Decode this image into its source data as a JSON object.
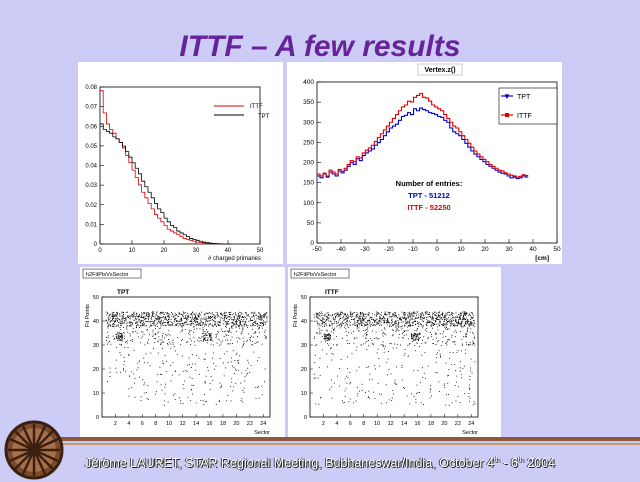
{
  "slide": {
    "title": "ITTF – A few results",
    "footer": {
      "name": "Jérôme LAURET, STAR Regional Meeting, Bubhaneswar/India, October 4",
      "sup1": "th",
      "mid": " - 6",
      "sup2": "th",
      "end": " 2004"
    }
  },
  "colors": {
    "background": "#ccccf7",
    "title": "#66239a",
    "ittf": "#e00000",
    "tpt": "#0000cc"
  },
  "chart_data": [
    {
      "type": "line",
      "xlabel": "# charged primaries",
      "xlim": [
        0,
        50
      ],
      "ylim": [
        0,
        0.085
      ],
      "xticks": [
        "0",
        "10",
        "20",
        "30",
        "40",
        "50"
      ],
      "yticks": [
        "0",
        "0.01",
        "0.02",
        "0.03",
        "0.04",
        "0.05",
        "0.06",
        "0.07",
        "0.08"
      ],
      "legend": [
        "ITTF",
        "TPT"
      ],
      "series": [
        {
          "name": "ITTF",
          "values": [
            0.083,
            0.071,
            0.065,
            0.062,
            0.06,
            0.057,
            0.055,
            0.052,
            0.048,
            0.044,
            0.04,
            0.036,
            0.032,
            0.028,
            0.025,
            0.022,
            0.019,
            0.016,
            0.014,
            0.012,
            0.01,
            0.008,
            0.007,
            0.006,
            0.005,
            0.004,
            0.003,
            0.0025,
            0.002,
            0.0015,
            0.001,
            0.0008,
            0.0006,
            0.0004,
            0.0003,
            0.0002,
            0.0001,
            0,
            0,
            0,
            0
          ]
        },
        {
          "name": "TPT",
          "values": [
            0.065,
            0.062,
            0.061,
            0.06,
            0.058,
            0.057,
            0.055,
            0.053,
            0.05,
            0.047,
            0.044,
            0.041,
            0.038,
            0.034,
            0.031,
            0.028,
            0.025,
            0.022,
            0.019,
            0.017,
            0.014,
            0.012,
            0.01,
            0.009,
            0.007,
            0.006,
            0.005,
            0.004,
            0.003,
            0.0025,
            0.002,
            0.0015,
            0.001,
            0.0008,
            0.0005,
            0.0003,
            0.0002,
            0.0001,
            0,
            0,
            0
          ]
        }
      ]
    },
    {
      "type": "line",
      "title": "Vertex.z()",
      "xlabel": "[cm]",
      "xlim": [
        -50,
        50
      ],
      "ylim": [
        0,
        420
      ],
      "xticks": [
        "-50",
        "-40",
        "-30",
        "-20",
        "-10",
        "0",
        "10",
        "20",
        "30",
        "40",
        "50"
      ],
      "yticks": [
        "0",
        "50",
        "100",
        "150",
        "200",
        "250",
        "300",
        "350",
        "400"
      ],
      "legend": [
        "TPT",
        "ITTF"
      ],
      "annotation": {
        "heading": "Number of entries:",
        "tpt": "TPT - 51212",
        "ittf": "ITTF - 52250"
      },
      "series": [
        {
          "name": "TPT",
          "values": [
            175,
            170,
            180,
            172,
            185,
            180,
            175,
            188,
            183,
            190,
            200,
            210,
            205,
            220,
            215,
            228,
            235,
            240,
            245,
            255,
            262,
            270,
            280,
            290,
            300,
            305,
            310,
            320,
            330,
            333,
            340,
            335,
            350,
            345,
            352,
            348,
            345,
            340,
            338,
            335,
            330,
            328,
            320,
            315,
            300,
            290,
            285,
            280,
            270,
            260,
            250,
            240,
            232,
            225,
            218,
            212,
            205,
            200,
            195,
            190,
            185,
            182,
            180,
            175,
            170,
            172,
            168,
            170,
            175,
            172
          ]
        },
        {
          "name": "ITTF",
          "values": [
            180,
            175,
            182,
            175,
            190,
            185,
            180,
            192,
            187,
            195,
            205,
            215,
            212,
            225,
            222,
            235,
            242,
            248,
            255,
            265,
            275,
            285,
            295,
            305,
            315,
            325,
            335,
            345,
            355,
            360,
            370,
            368,
            380,
            385,
            390,
            380,
            378,
            370,
            360,
            355,
            350,
            345,
            335,
            325,
            315,
            305,
            300,
            290,
            280,
            270,
            260,
            250,
            240,
            232,
            225,
            218,
            212,
            205,
            200,
            195,
            190,
            188,
            183,
            180,
            177,
            175,
            172,
            174,
            178,
            176
          ]
        }
      ]
    },
    {
      "type": "scatter",
      "tag": "h2FitPtsVsSector",
      "label": "TPT",
      "xlabel": "Sector",
      "ylabel": "Fit Points",
      "xlim": [
        0,
        25
      ],
      "ylim": [
        0,
        50
      ],
      "xticks": [
        "2",
        "4",
        "6",
        "8",
        "10",
        "12",
        "14",
        "16",
        "18",
        "20",
        "22",
        "24"
      ],
      "yticks": [
        "0",
        "10",
        "20",
        "30",
        "40",
        "50"
      ]
    },
    {
      "type": "scatter",
      "tag": "h2FitPtsVsSector",
      "label": "ITTF",
      "xlabel": "Sector",
      "ylabel": "Fit Points",
      "xlim": [
        0,
        25
      ],
      "ylim": [
        0,
        50
      ],
      "xticks": [
        "2",
        "4",
        "6",
        "8",
        "10",
        "12",
        "14",
        "16",
        "18",
        "20",
        "22",
        "24"
      ],
      "yticks": [
        "0",
        "10",
        "20",
        "30",
        "40",
        "50"
      ]
    }
  ]
}
